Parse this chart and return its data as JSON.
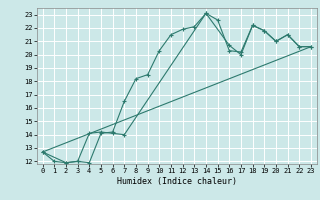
{
  "xlabel": "Humidex (Indice chaleur)",
  "ylabel": "",
  "xlim": [
    -0.5,
    23.5
  ],
  "ylim": [
    11.8,
    23.5
  ],
  "bg_color": "#cce8e8",
  "grid_color": "#ffffff",
  "line_color": "#2d7a6e",
  "xticks": [
    0,
    1,
    2,
    3,
    4,
    5,
    6,
    7,
    8,
    9,
    10,
    11,
    12,
    13,
    14,
    15,
    16,
    17,
    18,
    19,
    20,
    21,
    22,
    23
  ],
  "yticks": [
    12,
    13,
    14,
    15,
    16,
    17,
    18,
    19,
    20,
    21,
    22,
    23
  ],
  "line1": {
    "x": [
      0,
      1,
      2,
      3,
      4,
      5,
      6,
      7,
      8,
      9,
      10,
      11,
      12,
      13,
      14,
      15,
      16,
      17,
      18,
      19,
      20,
      21,
      22,
      23
    ],
    "y": [
      12.7,
      12.0,
      11.9,
      12.0,
      11.9,
      14.1,
      14.2,
      16.5,
      18.2,
      18.5,
      20.3,
      21.5,
      21.9,
      22.1,
      23.1,
      22.6,
      20.3,
      20.2,
      22.2,
      21.8,
      21.0,
      21.5,
      20.6,
      20.6
    ]
  },
  "line2": {
    "x": [
      0,
      2,
      3,
      4,
      5,
      6,
      7,
      14,
      16,
      17,
      18,
      19,
      20,
      21,
      22,
      23
    ],
    "y": [
      12.7,
      11.9,
      12.0,
      14.1,
      14.2,
      14.1,
      14.0,
      23.1,
      20.7,
      20.0,
      22.2,
      21.8,
      21.0,
      21.5,
      20.6,
      20.6
    ]
  },
  "line3": {
    "x": [
      0,
      23
    ],
    "y": [
      12.7,
      20.6
    ]
  }
}
